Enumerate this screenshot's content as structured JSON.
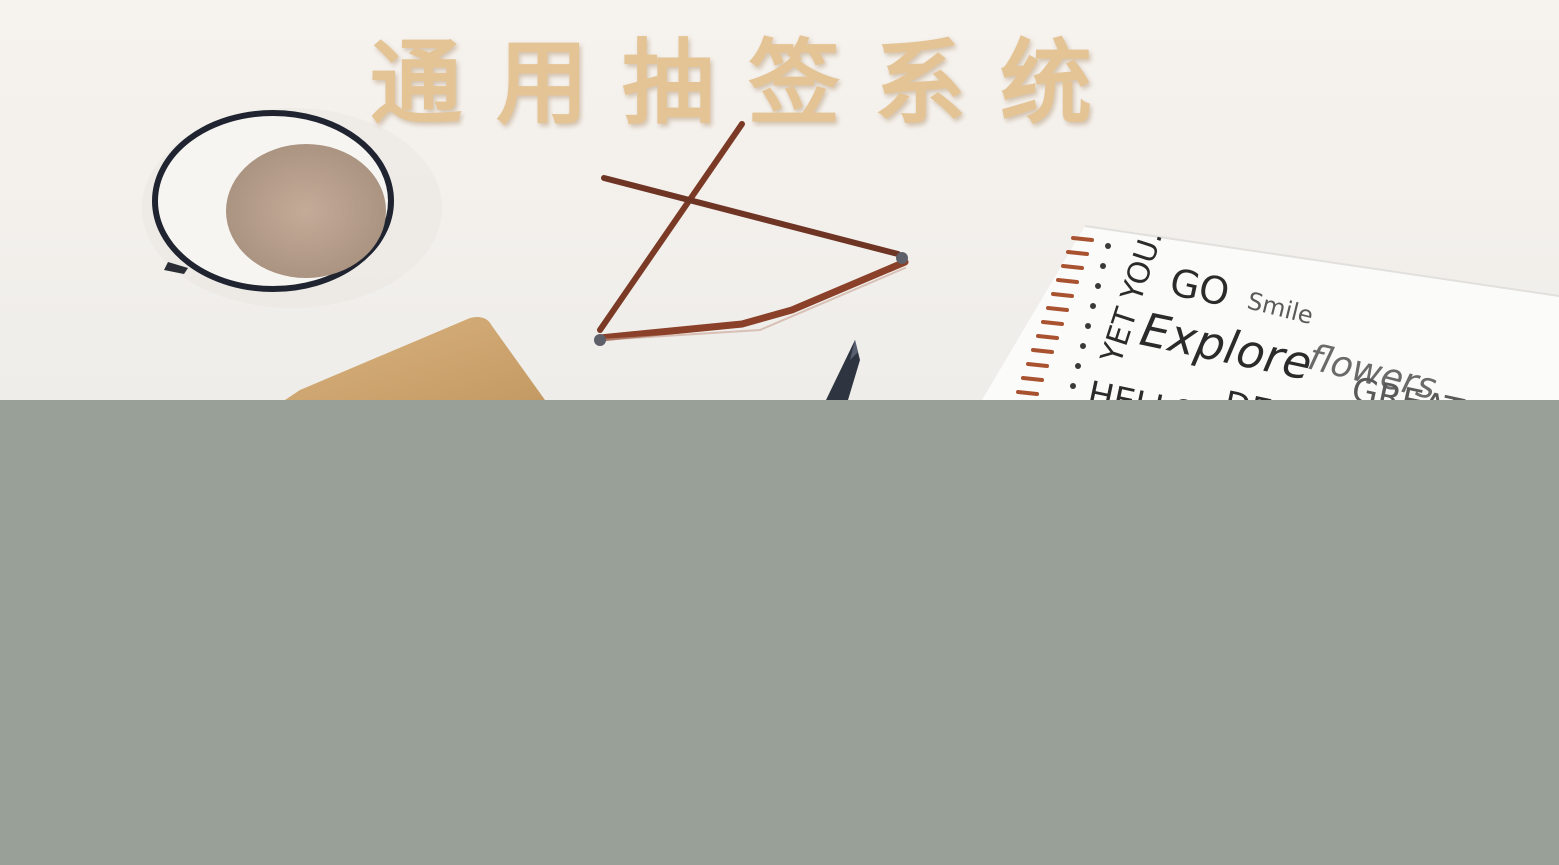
{
  "header": {
    "title": "通用抽签系统",
    "title_color": "#e4c495"
  },
  "banner": {
    "notebook_lines": [
      "YET YOU.",
      "GO",
      "Smile",
      "Explore",
      "flowers",
      "HELLO!",
      "DESI",
      "GREAT"
    ]
  },
  "main": {
    "background_color": "#98a098"
  }
}
